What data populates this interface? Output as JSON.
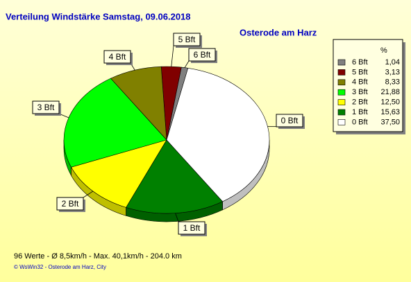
{
  "chart_data": {
    "type": "pie",
    "title": "Verteilung Windstärke  Samstag, 09.06.2018",
    "subtitle": "Osterode am Harz",
    "legend_title": "%",
    "categories": [
      "6 Bft",
      "5 Bft",
      "4 Bft",
      "3 Bft",
      "2 Bft",
      "1 Bft",
      "0 Bft"
    ],
    "values": [
      1.04,
      3.13,
      8.33,
      21.88,
      12.5,
      15.63,
      37.5
    ],
    "value_labels": [
      "1,04",
      "3,13",
      "8,33",
      "21,88",
      "12,50",
      "15,63",
      "37,50"
    ],
    "colors": [
      "#808080",
      "#800000",
      "#808000",
      "#00ff00",
      "#ffff00",
      "#008000",
      "#ffffff"
    ],
    "legend": "right",
    "footer": "96 Werte   -   Ø 8,5km/h  -  Max. 40,1km/h   -   204.0 km",
    "copyright": "© WsWin32  -  Osterode am Harz, City"
  }
}
